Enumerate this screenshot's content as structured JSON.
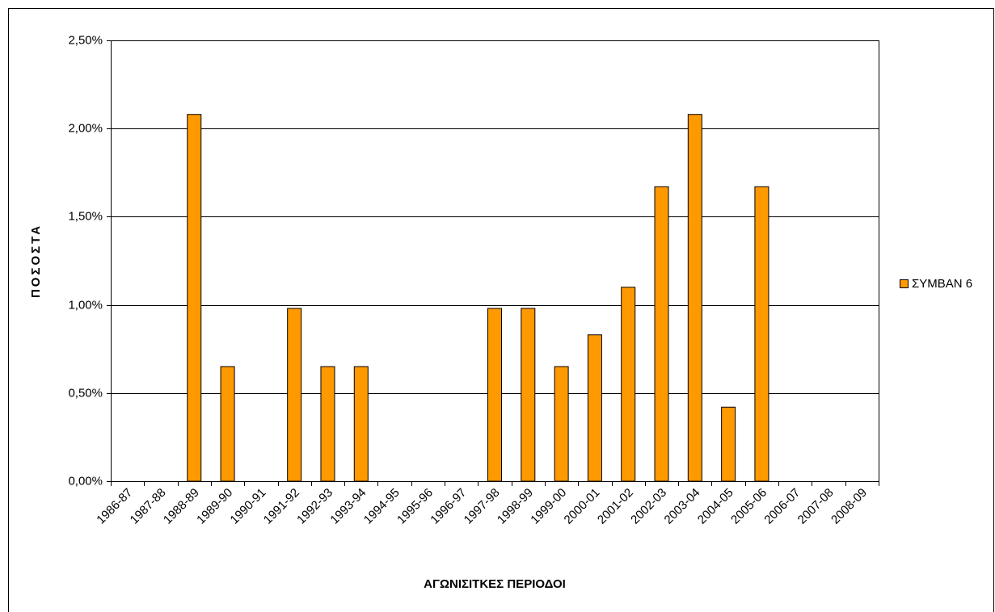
{
  "chart_data": {
    "type": "bar",
    "xlabel": "ΑΓΩΝΙΣΙΤΚΕΣ ΠΕΡΙΟΔΟΙ",
    "ylabel": "ΠΟΣΟΣΤΑ",
    "categories": [
      "1986-87",
      "1987-88",
      "1988-89",
      "1989-90",
      "1990-91",
      "1991-92",
      "1992-93",
      "1993-94",
      "1994-95",
      "1995-96",
      "1996-97",
      "1997-98",
      "1998-99",
      "1999-00",
      "2000-01",
      "2001-02",
      "2002-03",
      "2003-04",
      "2004-05",
      "2005-06",
      "2006-07",
      "2007-08",
      "2008-09"
    ],
    "series": [
      {
        "name": "ΣΥΜΒΑΝ 6",
        "color": "#ff9900",
        "values": [
          0,
          0,
          2.08,
          0.65,
          0,
          0.98,
          0.65,
          0.65,
          0,
          0,
          0,
          0.98,
          0.98,
          0.65,
          0.83,
          1.1,
          1.67,
          2.08,
          0.42,
          1.67,
          0,
          0,
          0
        ]
      }
    ],
    "ylim": [
      0,
      2.5
    ],
    "yticks": [
      {
        "value": 0,
        "label": "0,00%"
      },
      {
        "value": 0.5,
        "label": "0,50%"
      },
      {
        "value": 1,
        "label": "1,00%"
      },
      {
        "value": 1.5,
        "label": "1,50%"
      },
      {
        "value": 2,
        "label": "2,00%"
      },
      {
        "value": 2.5,
        "label": "2,50%"
      }
    ],
    "grid": true,
    "legend": "right"
  }
}
